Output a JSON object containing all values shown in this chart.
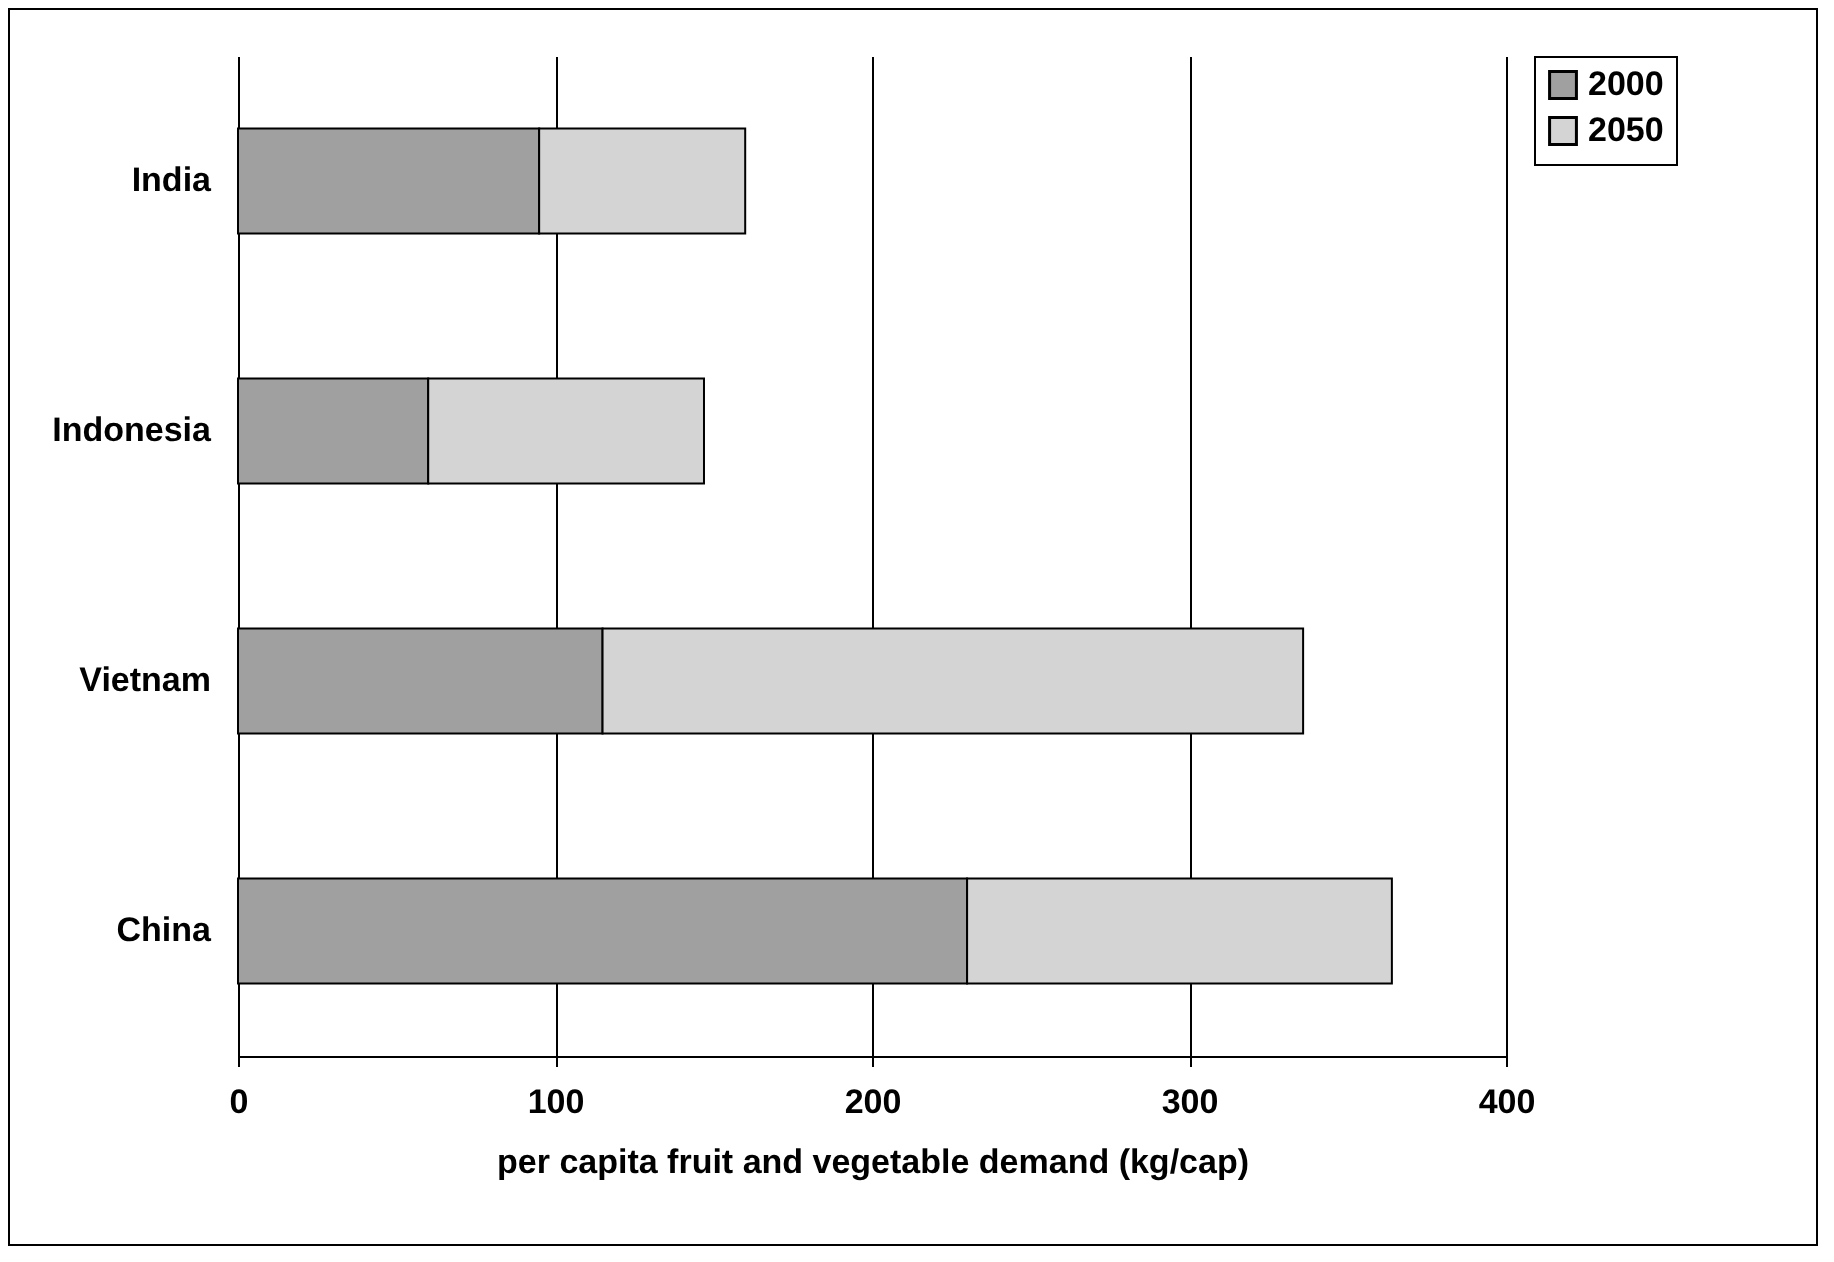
{
  "chart_data": {
    "type": "bar",
    "orientation": "horizontal",
    "stacked": true,
    "xlabel": "per capita fruit and vegetable demand (kg/cap)",
    "categories": [
      "India",
      "Indonesia",
      "Vietnam",
      "China"
    ],
    "series": [
      {
        "name": "2000",
        "color": "#a0a0a0",
        "values": [
          95,
          60,
          115,
          230
        ]
      },
      {
        "name": "2050",
        "color": "#d4d4d4",
        "values": [
          65,
          87,
          221,
          134
        ]
      }
    ],
    "xlim": [
      0,
      400
    ],
    "xticks": [
      0,
      100,
      200,
      300,
      400
    ],
    "grid": "x",
    "legend": "right"
  }
}
